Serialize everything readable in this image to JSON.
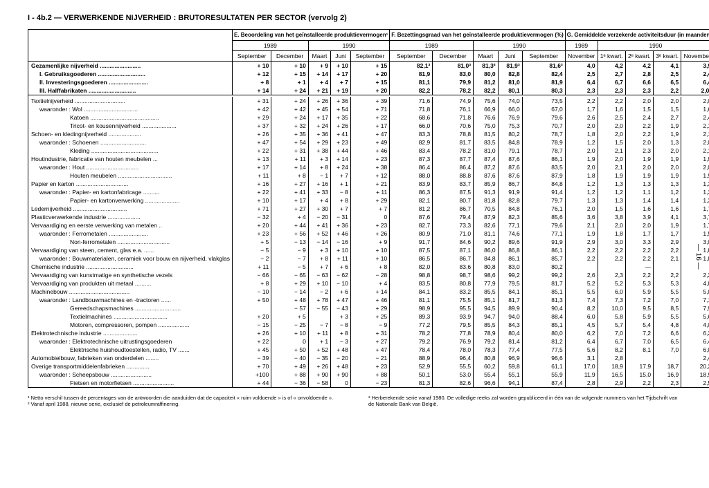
{
  "title": "I - 4b.2 — VERWERKENDE NIJVERHEID : BRUTORESULTATEN PER SECTOR (vervolg 2)",
  "pageNum": "— 16 —",
  "groupHeaders": {
    "E": "E. Beoordeling van het geïnstalleerde produktievermogen¹",
    "F": "F. Bezettingsgraad van het geïnstalleerde produktievermogen (%)",
    "G": "G. Gemiddelde verzekerde activiteitsduur (in maanden)"
  },
  "years": {
    "y89": "1989",
    "y90": "1990"
  },
  "months": {
    "sep": "September",
    "dec": "December",
    "maart": "Maart",
    "juni": "Juni",
    "nov": "November",
    "k1": "1ᵉ kwart.",
    "k2": "2ᵉ kwart.",
    "k3": "3ᵉ kwart."
  },
  "rows": [
    {
      "label": "Gezamenlijke nijverheid",
      "bold": true,
      "E": [
        "+ 10",
        "+ 10",
        "+ 9",
        "+ 10",
        "+ 15"
      ],
      "F": [
        "82,1³",
        "81,0³",
        "81,3³",
        "81,9³",
        "81,6³"
      ],
      "G": [
        "4,0",
        "4,2",
        "4,2",
        "4,1",
        "3,9"
      ]
    },
    {
      "label": "I. Gebruiksgoederen",
      "bold": true,
      "indent": 1,
      "E": [
        "+ 12",
        "+ 15",
        "+ 14",
        "+ 17",
        "+ 20"
      ],
      "F": [
        "81,9",
        "83,0",
        "80,0",
        "82,8",
        "82,4"
      ],
      "G": [
        "2,5",
        "2,7",
        "2,8",
        "2,5",
        "2,4"
      ]
    },
    {
      "label": "II. Investeringsgoederen",
      "bold": true,
      "indent": 1,
      "E": [
        "+ 8",
        "+ 1",
        "+ 4",
        "+ 7",
        "+ 15"
      ],
      "F": [
        "81,1",
        "79,9",
        "81,2",
        "81,0",
        "81,9"
      ],
      "G": [
        "6,4",
        "6,7",
        "6,6",
        "6,5",
        "6,4"
      ]
    },
    {
      "label": "III. Halffabrikaten",
      "bold": true,
      "indent": 1,
      "E": [
        "+ 14",
        "+ 24",
        "+ 21",
        "+ 19",
        "+ 20"
      ],
      "F": [
        "82,2",
        "78,2",
        "82,2",
        "80,1",
        "80,3"
      ],
      "G": [
        "2,3",
        "2,3",
        "2,3",
        "2,2",
        "2,0²"
      ]
    },
    {
      "sep": true
    },
    {
      "label": "Textielnijverheid",
      "E": [
        "+ 31",
        "+ 24",
        "+ 26",
        "+ 36",
        "+ 39"
      ],
      "F": [
        "71,6",
        "74,9",
        "75,6",
        "74,0",
        "73,5"
      ],
      "G": [
        "2,2",
        "2,2",
        "2,0",
        "2,0",
        "2,0"
      ]
    },
    {
      "label": "waaronder : Wol",
      "indent": 1,
      "E": [
        "+ 42",
        "+ 42",
        "+ 45",
        "+ 54",
        "+ 71"
      ],
      "F": [
        "71,8",
        "76,1",
        "66,9",
        "66,0",
        "67,0"
      ],
      "G": [
        "1,7",
        "1,6",
        "1,5",
        "1,5",
        "1,6"
      ]
    },
    {
      "label": "Katoen",
      "indent": 2,
      "E": [
        "+ 29",
        "+ 24",
        "+ 17",
        "+ 35",
        "+ 22"
      ],
      "F": [
        "68,6",
        "71,8",
        "76,6",
        "76,9",
        "79,6"
      ],
      "G": [
        "2,6",
        "2,5",
        "2,4",
        "2,7",
        "2,4"
      ]
    },
    {
      "label": "Tricot- en kousennijverheid",
      "indent": 2,
      "E": [
        "+ 37",
        "+ 32",
        "+ 24",
        "+ 26",
        "+ 17"
      ],
      "F": [
        "66,0",
        "70,6",
        "75,0",
        "75,3",
        "70,7"
      ],
      "G": [
        "2,0",
        "2,0",
        "2,2",
        "1,9",
        "2,1"
      ]
    },
    {
      "label": "Schoen- en kledingnijverheid",
      "E": [
        "+ 26",
        "+ 35",
        "+ 36",
        "+ 41",
        "+ 47"
      ],
      "F": [
        "83,3",
        "78,8",
        "81,5",
        "80,2",
        "78,7"
      ],
      "G": [
        "1,8",
        "2,0",
        "2,2",
        "1,9",
        "2,1"
      ]
    },
    {
      "label": "waaronder : Schoenen",
      "indent": 1,
      "E": [
        "+ 47",
        "+ 54",
        "+ 29",
        "+ 23",
        "+ 49"
      ],
      "F": [
        "82,9",
        "81,7",
        "83,5",
        "84,8",
        "78,9"
      ],
      "G": [
        "1,2",
        "1,5",
        "2,0",
        "1,3",
        "2,0"
      ]
    },
    {
      "label": "Kleding",
      "indent": 2,
      "E": [
        "+ 22",
        "+ 31",
        "+ 38",
        "+ 44",
        "+ 46"
      ],
      "F": [
        "83,4",
        "78,2",
        "81,0",
        "79,1",
        "78,7"
      ],
      "G": [
        "2,0",
        "2,1",
        "2,3",
        "2,0",
        "2,1"
      ]
    },
    {
      "label": "Houtindustrie, fabricatie van houten meubelen",
      "E": [
        "+ 13",
        "+ 11",
        "+ 3",
        "+ 14",
        "+ 23"
      ],
      "F": [
        "87,3",
        "87,7",
        "87,4",
        "87,6",
        "86,1"
      ],
      "G": [
        "1,9",
        "2,0",
        "1,9",
        "1,9",
        "1,9"
      ]
    },
    {
      "label": "waaronder : Hout",
      "indent": 1,
      "E": [
        "+ 17",
        "+ 14",
        "+ 8",
        "+ 24",
        "+ 38"
      ],
      "F": [
        "86,4",
        "86,4",
        "87,2",
        "87,6",
        "83,5"
      ],
      "G": [
        "2,0",
        "2,1",
        "2,0",
        "2,0",
        "2,0"
      ]
    },
    {
      "label": "Houten meubelen",
      "indent": 2,
      "E": [
        "+ 11",
        "+ 8",
        "− 1",
        "+ 7",
        "+ 12"
      ],
      "F": [
        "88,0",
        "88,8",
        "87,6",
        "87,6",
        "87,9"
      ],
      "G": [
        "1,8",
        "1,9",
        "1,9",
        "1,9",
        "1,9"
      ]
    },
    {
      "label": "Papier en karton",
      "E": [
        "+ 16",
        "+ 27",
        "+ 16",
        "+ 1",
        "+ 21"
      ],
      "F": [
        "83,9",
        "83,7",
        "85,9",
        "86,7",
        "84,8"
      ],
      "G": [
        "1,2",
        "1,3",
        "1,3",
        "1,3",
        "1,3"
      ]
    },
    {
      "label": "waaronder : Papier- en kartonfabricage",
      "indent": 1,
      "E": [
        "+ 22",
        "+ 41",
        "+ 33",
        "− 8",
        "+ 11"
      ],
      "F": [
        "86,3",
        "87,5",
        "91,3",
        "91,9",
        "91,4"
      ],
      "G": [
        "1,2",
        "1,2",
        "1,1",
        "1,2",
        "1,3"
      ]
    },
    {
      "label": "Papier- en kartonverwerking",
      "indent": 2,
      "E": [
        "+ 10",
        "+ 17",
        "+ 4",
        "+ 8",
        "+ 29"
      ],
      "F": [
        "82,1",
        "80,7",
        "81,8",
        "82,8",
        "79,7"
      ],
      "G": [
        "1,3",
        "1,3",
        "1,4",
        "1,4",
        "1,3"
      ]
    },
    {
      "label": "Ledernijverheid",
      "E": [
        "+ 71",
        "+ 27",
        "+ 30",
        "+ 7",
        "+ 7"
      ],
      "F": [
        "81,2",
        "86,7",
        "70,5",
        "84,8",
        "76,1"
      ],
      "G": [
        "2,0",
        "1,5",
        "1,6",
        "1,6",
        "1,7"
      ]
    },
    {
      "label": "Plasticverwerkende industrie",
      "E": [
        "− 32",
        "+ 4",
        "− 20",
        "− 31",
        "0"
      ],
      "F": [
        "87,6",
        "79,4",
        "87,9",
        "82,3",
        "85,6"
      ],
      "G": [
        "3,6",
        "3,8",
        "3,9",
        "4,1",
        "3,7"
      ]
    },
    {
      "label": "Vervaardiging en eerste verwerking van metalen",
      "E": [
        "+ 20",
        "+ 44",
        "+ 41",
        "+ 36",
        "+ 23"
      ],
      "F": [
        "82,7",
        "73,3",
        "82,6",
        "77,1",
        "79,6"
      ],
      "G": [
        "2,1",
        "2,0",
        "2,0",
        "1,9",
        "1,7"
      ]
    },
    {
      "label": "waaronder : Ferrometalen",
      "indent": 1,
      "E": [
        "+ 23",
        "+ 56",
        "+ 52",
        "+ 46",
        "+ 26"
      ],
      "F": [
        "80,9",
        "71,0",
        "81,1",
        "74,6",
        "77,1"
      ],
      "G": [
        "1,9",
        "1,8",
        "1,7",
        "1,7",
        "1,5"
      ]
    },
    {
      "label": "Non-ferrometalen",
      "indent": 2,
      "E": [
        "+ 5",
        "− 13",
        "− 14",
        "− 16",
        "+ 9"
      ],
      "F": [
        "91,7",
        "84,6",
        "90,2",
        "89,6",
        "91,9"
      ],
      "G": [
        "2,9",
        "3,0",
        "3,3",
        "2,9",
        "3,0"
      ]
    },
    {
      "label": "Vervaardiging van steen, cement, glas e.a.",
      "E": [
        "− 5",
        "− 9",
        "+ 3",
        "+ 10",
        "+ 10"
      ],
      "F": [
        "87,5",
        "87,1",
        "86,0",
        "86,8",
        "86,1"
      ],
      "G": [
        "2,2",
        "2,2",
        "2,2",
        "2,2",
        "1,8"
      ]
    },
    {
      "label": "waaronder : Bouwmaterialen, ceramiek voor bouw en nijverheid, vlakglas",
      "indent": 1,
      "wrap": true,
      "E": [
        "− 2",
        "− 7",
        "+ 8",
        "+ 11",
        "+ 10"
      ],
      "F": [
        "86,5",
        "86,7",
        "84,8",
        "86,1",
        "85,7"
      ],
      "G": [
        "2,2",
        "2,2",
        "2,2",
        "2,1",
        "1,8"
      ]
    },
    {
      "label": "Chemische industrie",
      "E": [
        "+ 11",
        "− 5",
        "+ 7",
        "+ 6",
        "+ 8"
      ],
      "F": [
        "82,0",
        "83,6",
        "80,8",
        "83,0",
        "80,2"
      ],
      "G": [
        "",
        "",
        "—",
        "",
        ""
      ]
    },
    {
      "label": "Vervaardiging van kunstmatige en synthetische vezels",
      "E": [
        "− 66",
        "− 65",
        "− 63",
        "− 62",
        "− 28"
      ],
      "F": [
        "98,8",
        "98,7",
        "98,6",
        "99,2",
        "99,2"
      ],
      "G": [
        "2,6",
        "2,3",
        "2,2",
        "2,2",
        "2,2"
      ]
    },
    {
      "label": "Vervaardiging van produkten uit metaal",
      "E": [
        "+ 8",
        "+ 29",
        "+ 10",
        "− 10",
        "+ 4"
      ],
      "F": [
        "83,5",
        "80,8",
        "77,9",
        "79,5",
        "81,7"
      ],
      "G": [
        "5,2",
        "5,2",
        "5,3",
        "5,3",
        "4,8"
      ]
    },
    {
      "label": "Machinebouw",
      "E": [
        "− 10",
        "− 14",
        "− 2",
        "+ 6",
        "+ 14"
      ],
      "F": [
        "84,1",
        "83,2",
        "85,5",
        "84,1",
        "85,1"
      ],
      "G": [
        "5,5",
        "6,0",
        "5,9",
        "5,5",
        "5,0"
      ]
    },
    {
      "label": "waaronder : Landbouwmachines en -tractoren",
      "indent": 1,
      "E": [
        "+ 50",
        "+ 48",
        "+ 78",
        "+ 47",
        "+ 46"
      ],
      "F": [
        "81,1",
        "75,5",
        "85,1",
        "81,7",
        "81,3"
      ],
      "G": [
        "7,4",
        "7,3",
        "7,2",
        "7,0",
        "7,1"
      ]
    },
    {
      "label": "Gereedschapsmachines",
      "indent": 2,
      "E": [
        "",
        "− 57",
        "− 55",
        "− 43",
        "+ 29"
      ],
      "F": [
        "98,9",
        "95,5",
        "94,5",
        "89,9",
        "90,4"
      ],
      "G": [
        "8,2",
        "10,0",
        "9,5",
        "8,5",
        "7,9"
      ]
    },
    {
      "label": "Textielmachines",
      "indent": 2,
      "E": [
        "+ 20",
        "+ 5",
        "",
        "+ 3",
        "+ 25"
      ],
      "F": [
        "89,3",
        "93,9",
        "94,7",
        "94,0",
        "88,4"
      ],
      "G": [
        "6,0",
        "5,8",
        "5,9",
        "5,5",
        "5,6"
      ]
    },
    {
      "label": "Motoren, compressoren, pompen",
      "indent": 2,
      "E": [
        "− 15",
        "− 25",
        "− 7",
        "− 8",
        "− 9"
      ],
      "F": [
        "77,2",
        "79,5",
        "85,5",
        "84,3",
        "85,1"
      ],
      "G": [
        "4,5",
        "5,7",
        "5,4",
        "4,8",
        "4,0"
      ]
    },
    {
      "label": "Elektrotechnische industrie",
      "E": [
        "+ 26",
        "+ 10",
        "+ 11",
        "+ 8",
        "+ 31"
      ],
      "F": [
        "78,2",
        "77,8",
        "78,9",
        "80,4",
        "80,0"
      ],
      "G": [
        "6,2",
        "7,0",
        "7,2",
        "6,6",
        "6,2"
      ]
    },
    {
      "label": "waaronder : Elektrotechnische uitrustingsgoederen",
      "indent": 1,
      "E": [
        "+ 22",
        "0",
        "+ 1",
        "− 3",
        "+ 27"
      ],
      "F": [
        "79,2",
        "76,9",
        "79,2",
        "81,4",
        "81,2"
      ],
      "G": [
        "6,4",
        "6,7",
        "7,0",
        "6,5",
        "6,4"
      ]
    },
    {
      "label": "Elektrische huishoudtoestellen, radio, TV",
      "indent": 2,
      "E": [
        "+ 45",
        "+ 50",
        "+ 52",
        "+ 48",
        "+ 47"
      ],
      "F": [
        "78,4",
        "78,0",
        "78,3",
        "77,4",
        "77,5"
      ],
      "G": [
        "5,6",
        "8,2",
        "8,1",
        "7,0",
        "6,0"
      ]
    },
    {
      "label": "Automobielbouw, fabrieken van onderdelen",
      "E": [
        "− 39",
        "− 40",
        "− 35",
        "− 20",
        "− 21"
      ],
      "F": [
        "88,9",
        "96,4",
        "80,8",
        "96,9",
        "96,6"
      ],
      "G": [
        "3,1",
        "2,8",
        "",
        "",
        "2,4"
      ]
    },
    {
      "label": "Overige transportmiddelenfabrieken",
      "E": [
        "+ 70",
        "+ 49",
        "+ 26",
        "+ 48",
        "+ 23"
      ],
      "F": [
        "52,9",
        "55,5",
        "60,2",
        "59,8",
        "61,1"
      ],
      "G": [
        "17,0",
        "18,9",
        "17,9",
        "18,7",
        "20,2"
      ]
    },
    {
      "label": "waaronder : Scheepsbouw",
      "indent": 1,
      "E": [
        "+100",
        "+ 88",
        "+ 90",
        "+ 90",
        "+ 88"
      ],
      "F": [
        "50,1",
        "53,0",
        "55,4",
        "55,1",
        "55,9"
      ],
      "G": [
        "11,9",
        "16,5",
        "15,0",
        "16,9",
        "18,9"
      ]
    },
    {
      "label": "Fietsen en motorfietsen",
      "indent": 2,
      "E": [
        "+ 44",
        "− 36",
        "− 58",
        "0",
        "− 23"
      ],
      "F": [
        "81,3",
        "82,6",
        "96,6",
        "94,1",
        "87,4"
      ],
      "G": [
        "2,8",
        "2,9",
        "2,2",
        "2,3",
        "2,5"
      ]
    }
  ],
  "footnotes": {
    "left": [
      "¹ Netto verschil tussen de percentages van de antwoorden die aanduiden dat de capaciteit « ruim voldoende » is of « onvoldoende ».",
      "² Vanaf april 1988, nieuwe serie, exclusief de petroleumraffinering."
    ],
    "right": [
      "³ Herberekende serie vanaf 1980. De volledige reeks zal worden gepubliceerd in één van de volgende nummers van het Tijdschrift van de Nationale Bank van België."
    ]
  }
}
